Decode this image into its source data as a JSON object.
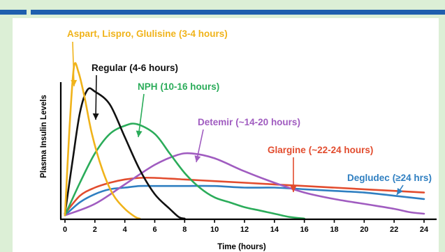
{
  "chart_data": {
    "type": "line",
    "title": "",
    "xlabel": "Time (hours)",
    "ylabel": "Plasma Insulin Levels",
    "xlim": [
      0,
      24
    ],
    "ylim": [
      0,
      100
    ],
    "x_ticks": [
      0,
      2,
      4,
      6,
      8,
      10,
      12,
      14,
      16,
      18,
      20,
      22,
      24
    ],
    "grid": false,
    "series": [
      {
        "name": "Aspart, Lispro, Glulisine (3-4 hours)",
        "label_main": "Aspart, Lispro, Glulisine",
        "label_duration": "(3-4 hours)",
        "color": "#f0b31a",
        "x": [
          0,
          0.3,
          0.6,
          0.9,
          1.3,
          1.8,
          2.5,
          3.2,
          4.0,
          4.7,
          5.0
        ],
        "y": [
          2,
          55,
          93,
          90,
          75,
          52,
          30,
          15,
          6,
          1,
          0
        ]
      },
      {
        "name": "Regular (4-6 hours)",
        "label_main": "Regular",
        "label_duration": "(4-6 hours)",
        "color": "#111111",
        "x": [
          0,
          0.5,
          1.0,
          1.5,
          2.0,
          3.0,
          4.0,
          5.0,
          6.0,
          7.0,
          7.6,
          8.0
        ],
        "y": [
          3,
          35,
          65,
          79,
          78,
          70,
          50,
          30,
          15,
          6,
          1,
          0
        ]
      },
      {
        "name": "NPH (10-16 hours)",
        "label_main": "NPH",
        "label_duration": "(10-16 hours)",
        "color": "#2bac5a",
        "x": [
          0,
          1,
          2,
          3,
          4,
          4.8,
          6,
          7,
          8,
          9,
          10,
          11,
          12,
          13,
          14,
          15,
          16
        ],
        "y": [
          2,
          22,
          40,
          52,
          57,
          58,
          52,
          40,
          28,
          19,
          13,
          10,
          7,
          5,
          3,
          1,
          0
        ]
      },
      {
        "name": "Detemir (~14-20 hours)",
        "label_main": "Detemir",
        "label_duration": "(~14-20 hours)",
        "color": "#a05cc0",
        "x": [
          0,
          2,
          4,
          6,
          7.5,
          8.5,
          10,
          12,
          14,
          16,
          18,
          20,
          22,
          23,
          24
        ],
        "y": [
          2,
          9,
          21,
          33,
          39,
          40,
          37,
          29,
          22,
          16,
          12,
          9,
          6,
          4,
          3
        ]
      },
      {
        "name": "Glargine (~22-24 hours)",
        "label_main": "Glargine",
        "label_duration": "(~22-24 hours)",
        "color": "#e24c2e",
        "x": [
          0,
          1,
          2,
          3,
          4,
          5,
          6,
          8,
          10,
          12,
          14,
          16,
          18,
          20,
          22,
          24
        ],
        "y": [
          3,
          14,
          19,
          22,
          24,
          25,
          25,
          24,
          23,
          22,
          21,
          20,
          19,
          18,
          17,
          16
        ]
      },
      {
        "name": "Degludec (≥24 hrs)",
        "label_main": "Degludec",
        "label_duration": "(≥24 hrs)",
        "color": "#2f7fc1",
        "x": [
          0,
          1,
          2,
          3,
          4,
          5,
          6,
          8,
          10,
          12,
          14,
          16,
          18,
          20,
          22,
          24
        ],
        "y": [
          2,
          10,
          15,
          18,
          19,
          20,
          20,
          20,
          20,
          19,
          19,
          18,
          17,
          16,
          14,
          12
        ]
      }
    ]
  }
}
